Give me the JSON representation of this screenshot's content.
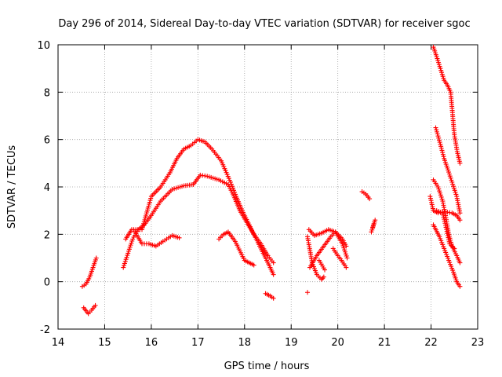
{
  "chart_data": {
    "type": "scatter",
    "title": "Day 296 of 2014, Sidereal Day-to-day VTEC variation (SDTVAR) for receiver sgoc",
    "xlabel": "GPS time / hours",
    "ylabel": "SDTVAR / TECUs",
    "xlim": [
      14,
      23
    ],
    "ylim": [
      -2,
      10
    ],
    "x_ticks": [
      "14",
      "15",
      "16",
      "17",
      "18",
      "19",
      "20",
      "21",
      "22",
      "23"
    ],
    "y_ticks": [
      "-2",
      "0",
      "2",
      "4",
      "6",
      "8",
      "10"
    ],
    "grid": true,
    "marker": "+",
    "series": [
      {
        "name": "SDTVAR",
        "color": "#ff0000",
        "segments": [
          [
            [
              14.52,
              -0.2
            ],
            [
              14.6,
              -0.1
            ],
            [
              14.68,
              0.2
            ],
            [
              14.75,
              0.6
            ],
            [
              14.82,
              1.0
            ]
          ],
          [
            [
              14.55,
              -1.1
            ],
            [
              14.65,
              -1.35
            ],
            [
              14.72,
              -1.2
            ],
            [
              14.8,
              -1.0
            ]
          ],
          [
            [
              15.4,
              0.6
            ],
            [
              15.5,
              1.2
            ],
            [
              15.6,
              1.8
            ],
            [
              15.72,
              2.2
            ],
            [
              15.85,
              2.4
            ],
            [
              16.0,
              2.8
            ],
            [
              16.2,
              3.4
            ],
            [
              16.45,
              3.9
            ],
            [
              16.7,
              4.05
            ],
            [
              16.9,
              4.1
            ],
            [
              17.05,
              4.5
            ],
            [
              17.2,
              4.45
            ],
            [
              17.45,
              4.3
            ],
            [
              17.65,
              4.1
            ],
            [
              17.75,
              3.7
            ],
            [
              17.9,
              3.0
            ],
            [
              18.05,
              2.5
            ],
            [
              18.2,
              2.0
            ],
            [
              18.35,
              1.6
            ],
            [
              18.5,
              1.1
            ],
            [
              18.62,
              0.8
            ]
          ],
          [
            [
              15.45,
              1.8
            ],
            [
              15.58,
              2.2
            ],
            [
              15.8,
              2.2
            ],
            [
              16.0,
              3.6
            ],
            [
              16.2,
              4.0
            ],
            [
              16.4,
              4.6
            ],
            [
              16.55,
              5.2
            ],
            [
              16.7,
              5.6
            ],
            [
              16.85,
              5.75
            ],
            [
              17.0,
              6.0
            ],
            [
              17.15,
              5.9
            ],
            [
              17.3,
              5.6
            ],
            [
              17.5,
              5.1
            ],
            [
              17.7,
              4.2
            ],
            [
              17.82,
              3.6
            ],
            [
              17.95,
              3.0
            ],
            [
              18.1,
              2.4
            ],
            [
              18.25,
              1.8
            ],
            [
              18.4,
              1.2
            ],
            [
              18.55,
              0.6
            ],
            [
              18.62,
              0.3
            ]
          ],
          [
            [
              15.65,
              2.1
            ],
            [
              15.8,
              1.6
            ],
            [
              15.95,
              1.6
            ],
            [
              16.1,
              1.5
            ],
            [
              16.25,
              1.7
            ],
            [
              16.45,
              1.95
            ],
            [
              16.6,
              1.85
            ]
          ],
          [
            [
              17.45,
              1.8
            ],
            [
              17.55,
              2.0
            ],
            [
              17.65,
              2.1
            ],
            [
              17.8,
              1.7
            ],
            [
              17.9,
              1.3
            ],
            [
              18.0,
              0.9
            ],
            [
              18.1,
              0.8
            ],
            [
              18.2,
              0.7
            ]
          ],
          [
            [
              18.45,
              -0.5
            ],
            [
              18.55,
              -0.6
            ],
            [
              18.62,
              -0.7
            ]
          ],
          [
            [
              19.35,
              -0.45
            ]
          ],
          [
            [
              19.35,
              1.9
            ],
            [
              19.45,
              0.8
            ],
            [
              19.55,
              0.3
            ],
            [
              19.65,
              0.1
            ],
            [
              19.7,
              0.2
            ]
          ],
          [
            [
              19.38,
              2.2
            ],
            [
              19.5,
              1.95
            ],
            [
              19.65,
              2.05
            ],
            [
              19.8,
              2.2
            ],
            [
              19.95,
              2.1
            ],
            [
              20.1,
              1.8
            ],
            [
              20.18,
              1.5
            ]
          ],
          [
            [
              19.4,
              0.6
            ],
            [
              19.55,
              1.1
            ],
            [
              19.7,
              1.5
            ],
            [
              19.85,
              1.9
            ],
            [
              19.95,
              2.1
            ],
            [
              20.1,
              1.6
            ],
            [
              20.2,
              1.0
            ]
          ],
          [
            [
              19.6,
              0.9
            ],
            [
              19.72,
              0.5
            ]
          ],
          [
            [
              19.9,
              1.4
            ],
            [
              20.0,
              1.1
            ],
            [
              20.08,
              0.9
            ],
            [
              20.18,
              0.6
            ]
          ],
          [
            [
              20.52,
              3.8
            ],
            [
              20.6,
              3.7
            ],
            [
              20.68,
              3.5
            ]
          ],
          [
            [
              20.75,
              2.3
            ],
            [
              20.8,
              2.6
            ],
            [
              20.72,
              2.1
            ]
          ],
          [
            [
              21.98,
              3.6
            ],
            [
              22.05,
              3.0
            ],
            [
              22.15,
              2.9
            ],
            [
              22.3,
              2.95
            ],
            [
              22.45,
              2.9
            ],
            [
              22.55,
              2.8
            ],
            [
              22.62,
              2.6
            ]
          ],
          [
            [
              22.05,
              9.9
            ],
            [
              22.12,
              9.5
            ],
            [
              22.2,
              9.0
            ],
            [
              22.28,
              8.5
            ],
            [
              22.35,
              8.3
            ],
            [
              22.42,
              8.0
            ],
            [
              22.5,
              6.2
            ],
            [
              22.56,
              5.5
            ],
            [
              22.62,
              5.0
            ]
          ],
          [
            [
              22.1,
              6.5
            ],
            [
              22.2,
              5.8
            ],
            [
              22.28,
              5.2
            ],
            [
              22.35,
              4.8
            ],
            [
              22.45,
              4.2
            ],
            [
              22.55,
              3.6
            ],
            [
              22.62,
              2.9
            ]
          ],
          [
            [
              22.05,
              4.3
            ],
            [
              22.15,
              4.0
            ],
            [
              22.25,
              3.4
            ],
            [
              22.32,
              2.7
            ],
            [
              22.38,
              2.0
            ],
            [
              22.45,
              1.5
            ],
            [
              22.55,
              1.1
            ],
            [
              22.62,
              0.8
            ]
          ],
          [
            [
              22.05,
              2.4
            ],
            [
              22.18,
              1.9
            ],
            [
              22.28,
              1.4
            ],
            [
              22.38,
              0.9
            ],
            [
              22.48,
              0.4
            ],
            [
              22.55,
              0.0
            ],
            [
              22.62,
              -0.2
            ]
          ],
          [
            [
              22.12,
              3.0
            ],
            [
              22.25,
              2.9
            ],
            [
              22.4,
              1.6
            ],
            [
              22.5,
              1.4
            ]
          ]
        ]
      }
    ]
  }
}
